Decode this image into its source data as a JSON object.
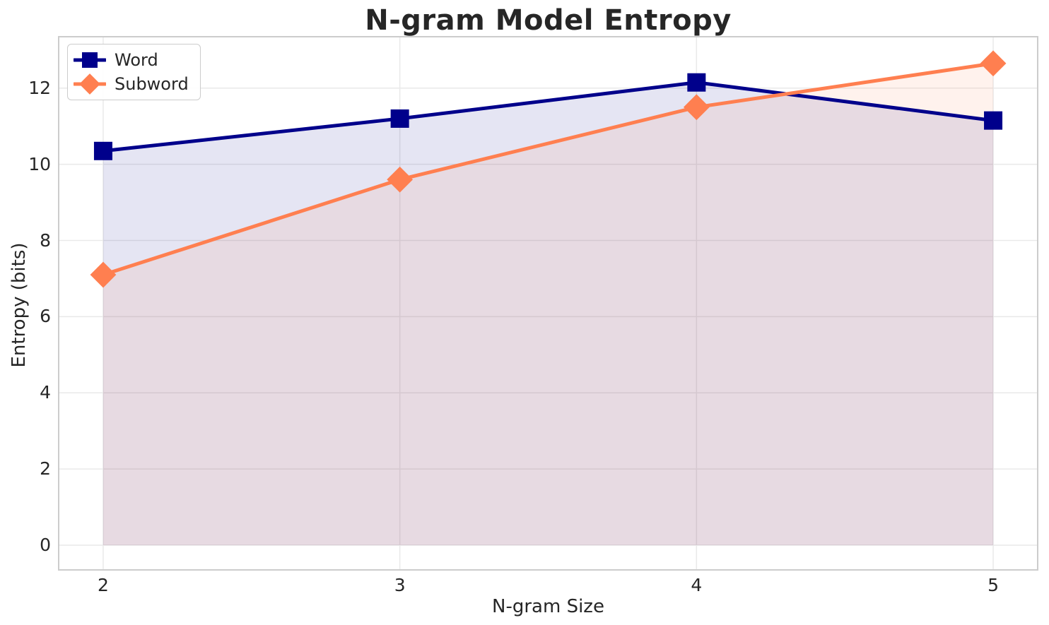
{
  "chart_data": {
    "type": "line",
    "title": "N-gram Model Entropy",
    "xlabel": "N-gram Size",
    "ylabel": "Entropy (bits)",
    "x": [
      2,
      3,
      4,
      5
    ],
    "series": [
      {
        "name": "Word",
        "color": "#00008B",
        "marker": "square",
        "values": [
          10.35,
          11.2,
          12.15,
          11.15
        ],
        "fill_to_zero": true,
        "fill_opacity": 0.1
      },
      {
        "name": "Subword",
        "color": "#FF7F50",
        "marker": "diamond",
        "values": [
          7.1,
          9.6,
          11.5,
          12.65
        ],
        "fill_to_zero": true,
        "fill_opacity": 0.1
      }
    ],
    "xticks": {
      "values": [
        2,
        3,
        4,
        5
      ],
      "labels": [
        "2",
        "3",
        "4",
        "5"
      ]
    },
    "yticks": {
      "values": [
        0,
        2,
        4,
        6,
        8,
        10,
        12
      ],
      "labels": [
        "0",
        "2",
        "4",
        "6",
        "8",
        "10",
        "12"
      ]
    },
    "xlim": [
      1.85,
      5.15
    ],
    "ylim": [
      -0.65,
      13.35
    ],
    "grid": true,
    "legend_position": "top-left",
    "grid_color": "#e9e9e9",
    "spine_color": "#cccccc",
    "text_color": "#262626",
    "background": "#ffffff"
  }
}
